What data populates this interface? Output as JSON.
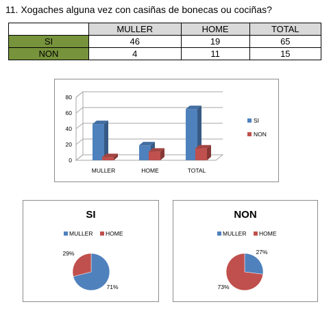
{
  "question": "11. Xogaches alguna vez con casiñas de bonecas ou cociñas?",
  "table": {
    "headers": [
      "",
      "MULLER",
      "HOME",
      "TOTAL"
    ],
    "rows": [
      {
        "label": "SI",
        "values": [
          "46",
          "19",
          "65"
        ]
      },
      {
        "label": "NON",
        "values": [
          "4",
          "11",
          "15"
        ]
      }
    ]
  },
  "colors": {
    "blue": "#4f81bd",
    "red": "#c0504d",
    "row_label_bg": "#77933c",
    "header_bg": "#d9d9d9"
  },
  "chart_data": [
    {
      "type": "bar",
      "categories": [
        "MULLER",
        "HOME",
        "TOTAL"
      ],
      "series": [
        {
          "name": "SI",
          "values": [
            46,
            19,
            65
          ]
        },
        {
          "name": "NON",
          "values": [
            4,
            11,
            15
          ]
        }
      ],
      "ylim": [
        0,
        80
      ],
      "yticks": [
        "0",
        "20",
        "40",
        "60",
        "80"
      ],
      "grid": true,
      "legend": "right"
    },
    {
      "type": "pie",
      "title": "SI",
      "labels": [
        "MULLER",
        "HOME"
      ],
      "values": [
        71,
        29
      ],
      "data_labels": [
        "71%",
        "29%"
      ],
      "legend": "top"
    },
    {
      "type": "pie",
      "title": "NON",
      "labels": [
        "MULLER",
        "HOME"
      ],
      "values": [
        27,
        73
      ],
      "data_labels": [
        "27%",
        "73%"
      ],
      "legend": "top"
    }
  ]
}
